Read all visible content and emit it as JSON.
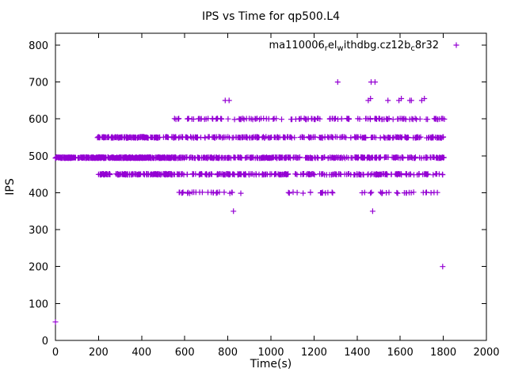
{
  "chart_data": {
    "type": "scatter",
    "title": "IPS vs Time for qp500.L4",
    "xlabel": "Time(s)",
    "ylabel": "IPS",
    "xlim": [
      0,
      2000
    ],
    "ylim": [
      0,
      832
    ],
    "xticks": [
      0,
      200,
      400,
      600,
      800,
      1000,
      1200,
      1400,
      1600,
      1800,
      2000
    ],
    "yticks": [
      0,
      100,
      200,
      300,
      400,
      500,
      600,
      700,
      800
    ],
    "grid": false,
    "legend": {
      "position": "top-right",
      "plain_label": "ma110006_rel_withdbg.cz12b_c8r32",
      "segments": [
        {
          "text": "ma110006",
          "sub": false
        },
        {
          "text": "r",
          "sub": true
        },
        {
          "text": "el",
          "sub": false
        },
        {
          "text": "w",
          "sub": true
        },
        {
          "text": "ithdbg.cz12b",
          "sub": false
        },
        {
          "text": "c",
          "sub": true
        },
        {
          "text": "8r32",
          "sub": false
        }
      ]
    },
    "series_color": "#9400D3",
    "marker": "plus",
    "bands": [
      {
        "y": 495,
        "x0": 0,
        "x1": 560,
        "n": 430
      },
      {
        "y": 495,
        "x0": 560,
        "x1": 1805,
        "n": 345
      },
      {
        "y": 550,
        "x0": 195,
        "x1": 560,
        "n": 150
      },
      {
        "y": 550,
        "x0": 560,
        "x1": 1805,
        "n": 235
      },
      {
        "y": 450,
        "x0": 195,
        "x1": 560,
        "n": 145
      },
      {
        "y": 450,
        "x0": 560,
        "x1": 1805,
        "n": 255
      },
      {
        "y": 600,
        "x0": 545,
        "x1": 1805,
        "n": 140
      },
      {
        "y": 400,
        "x0": 545,
        "x1": 870,
        "n": 26
      },
      {
        "y": 400,
        "x0": 1080,
        "x1": 1310,
        "n": 16
      },
      {
        "y": 400,
        "x0": 1420,
        "x1": 1800,
        "n": 24
      }
    ],
    "points": [
      [
        0,
        50
      ],
      [
        788,
        650
      ],
      [
        806,
        650
      ],
      [
        826,
        350
      ],
      [
        1310,
        700
      ],
      [
        1465,
        700
      ],
      [
        1483,
        700
      ],
      [
        1452,
        650
      ],
      [
        1462,
        655
      ],
      [
        1472,
        350
      ],
      [
        1543,
        650
      ],
      [
        1594,
        650
      ],
      [
        1605,
        655
      ],
      [
        1645,
        650
      ],
      [
        1652,
        650
      ],
      [
        1700,
        650
      ],
      [
        1712,
        655
      ],
      [
        1797,
        200
      ]
    ]
  }
}
